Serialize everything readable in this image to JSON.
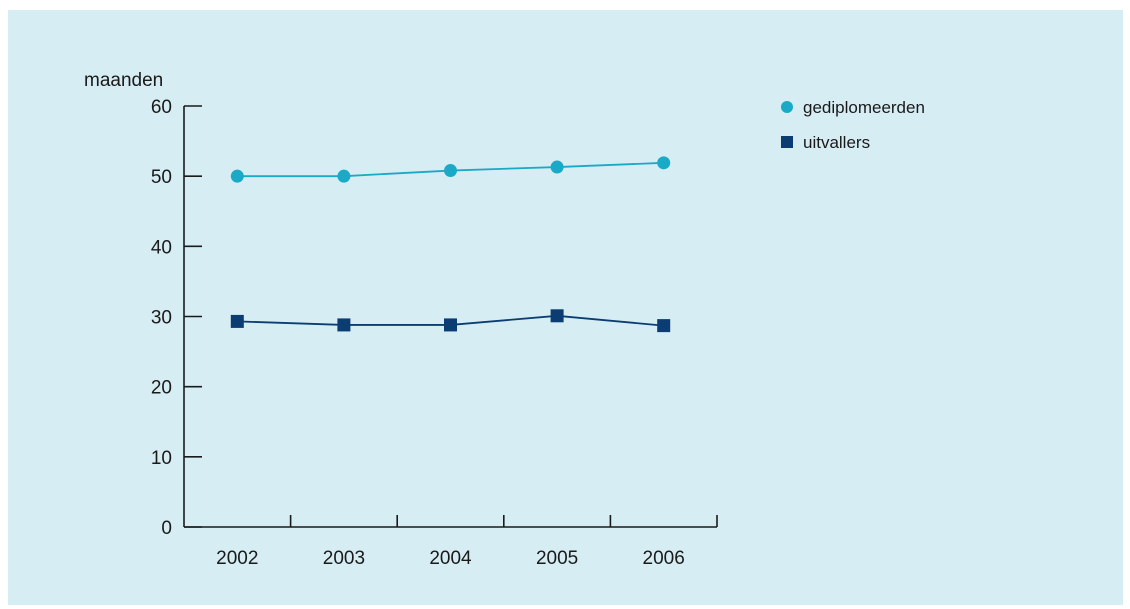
{
  "chart_data": {
    "type": "line",
    "ylabel": "maanden",
    "xlabel": "",
    "ylim": [
      0,
      60
    ],
    "yticks": [
      0,
      10,
      20,
      30,
      40,
      50,
      60
    ],
    "categories": [
      "2002",
      "2003",
      "2004",
      "2005",
      "2006"
    ],
    "legend_position": "top-right",
    "grid": false,
    "series": [
      {
        "name": "gediplomeerden",
        "marker": "circle",
        "color": "#1aa9c7",
        "values": [
          50.0,
          50.0,
          50.8,
          51.3,
          51.9
        ]
      },
      {
        "name": "uitvallers",
        "marker": "square",
        "color": "#0b3c72",
        "values": [
          29.3,
          28.8,
          28.8,
          30.1,
          28.7
        ]
      }
    ]
  }
}
